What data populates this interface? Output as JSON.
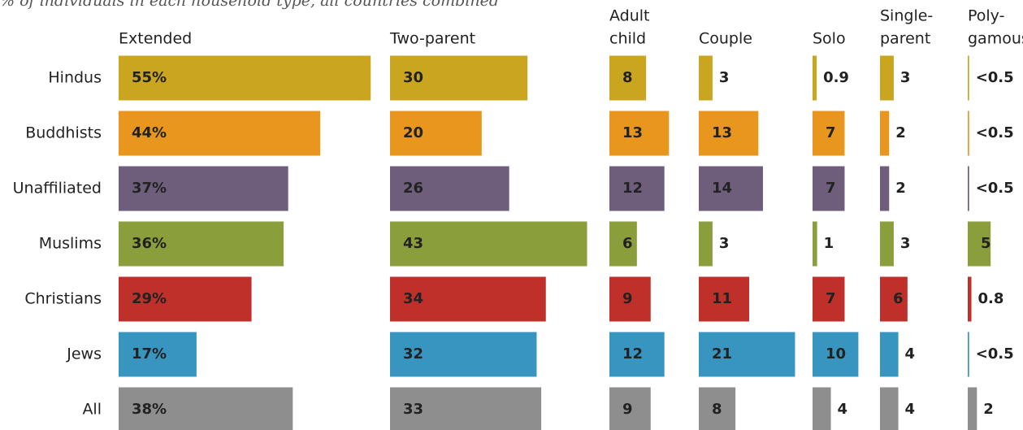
{
  "chart_data": {
    "type": "bar",
    "orientation": "horizontal",
    "subtitle": "% of individuals in each household type, all countries combined",
    "categories": [
      "Hindus",
      "Buddhists",
      "Unaffiliated",
      "Muslims",
      "Christians",
      "Jews",
      "All"
    ],
    "colors": [
      "#c9a520",
      "#e8961e",
      "#6e5e7c",
      "#8a9e3c",
      "#c0302a",
      "#3795c0",
      "#8e8e8e"
    ],
    "label_colors": [
      "#ffffff",
      "#111111",
      "#ffffff",
      "#ffffff",
      "#ffffff",
      "#ffffff",
      "#ffffff"
    ],
    "series": [
      {
        "name": [
          "Extended"
        ],
        "values": [
          55,
          44,
          37,
          36,
          29,
          17,
          38
        ],
        "value_labels": [
          "55%",
          "44%",
          "37%",
          "36%",
          "29%",
          "17%",
          "38%"
        ]
      },
      {
        "name": [
          "Two-parent"
        ],
        "values": [
          30,
          20,
          26,
          43,
          34,
          32,
          33
        ]
      },
      {
        "name": [
          "Adult",
          "child"
        ],
        "values": [
          8,
          13,
          12,
          6,
          9,
          12,
          9
        ]
      },
      {
        "name": [
          "Couple"
        ],
        "values": [
          3,
          13,
          14,
          3,
          11,
          21,
          8
        ]
      },
      {
        "name": [
          "Solo"
        ],
        "values": [
          0.9,
          7,
          7,
          1,
          7,
          10,
          4
        ]
      },
      {
        "name": [
          "Single-",
          "parent"
        ],
        "values": [
          3,
          2,
          2,
          3,
          6,
          4,
          4
        ]
      },
      {
        "name": [
          "Poly-",
          "gamous"
        ],
        "values": [
          0.3,
          0.3,
          0.3,
          5,
          0.8,
          0.3,
          2
        ],
        "value_labels": [
          "<0.5",
          "<0.5",
          "<0.5",
          "5",
          "0.8",
          "<0.5",
          "2"
        ]
      }
    ]
  }
}
